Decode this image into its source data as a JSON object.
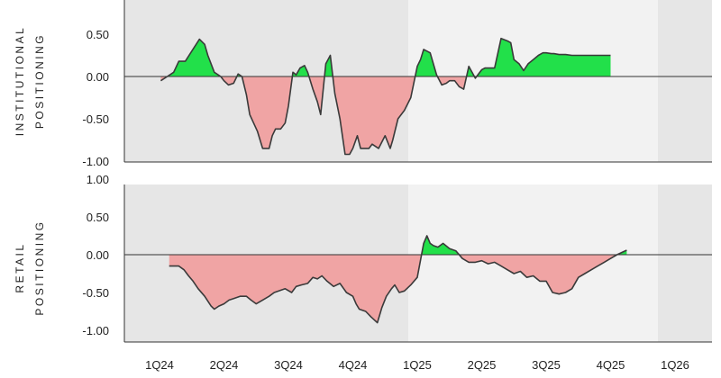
{
  "chart_data": [
    {
      "type": "area",
      "ylabel_lines": [
        "INSTITUTIONAL",
        "POSITIONING"
      ],
      "ylim": [
        -1.0,
        0.7
      ],
      "yticks": [
        0.5,
        0.0,
        -0.5,
        -1.0
      ],
      "ytick_labels": [
        "0.50",
        "0.00",
        "-0.50",
        "-1.00"
      ],
      "grid": false,
      "x": [
        0.02,
        0.12,
        0.22,
        0.3,
        0.4,
        0.5,
        0.62,
        0.7,
        0.75,
        0.85,
        0.95,
        1.0,
        1.07,
        1.15,
        1.22,
        1.28,
        1.35,
        1.4,
        1.46,
        1.52,
        1.6,
        1.7,
        1.75,
        1.8,
        1.88,
        1.95,
        2.0,
        2.07,
        2.12,
        2.18,
        2.25,
        2.3,
        2.38,
        2.45,
        2.5,
        2.58,
        2.65,
        2.72,
        2.8,
        2.88,
        2.95,
        3.0,
        3.07,
        3.12,
        3.2,
        3.25,
        3.3,
        3.4,
        3.5,
        3.58,
        3.62,
        3.7,
        3.8,
        3.9,
        4.0,
        4.05,
        4.1,
        4.2,
        4.3,
        4.38,
        4.45,
        4.5,
        4.58,
        4.65,
        4.72,
        4.8,
        4.9,
        5.0,
        5.05,
        5.1,
        5.2,
        5.3,
        5.4,
        5.45,
        5.5,
        5.58,
        5.65,
        5.72,
        5.8,
        5.88,
        5.95,
        6.0,
        6.08,
        6.12,
        6.2,
        6.3,
        6.4,
        6.5,
        6.6,
        6.7,
        6.8,
        6.9,
        7.0
      ],
      "y": [
        -0.05,
        0.0,
        0.05,
        0.18,
        0.18,
        0.3,
        0.44,
        0.38,
        0.25,
        0.05,
        0.0,
        -0.05,
        -0.1,
        -0.08,
        0.03,
        0.0,
        -0.22,
        -0.45,
        -0.55,
        -0.65,
        -0.85,
        -0.85,
        -0.7,
        -0.62,
        -0.62,
        -0.55,
        -0.35,
        0.05,
        0.02,
        0.1,
        0.13,
        0.05,
        -0.15,
        -0.3,
        -0.45,
        0.15,
        0.25,
        -0.2,
        -0.5,
        -0.92,
        -0.92,
        -0.85,
        -0.7,
        -0.85,
        -0.85,
        -0.85,
        -0.8,
        -0.85,
        -0.7,
        -0.85,
        -0.75,
        -0.5,
        -0.4,
        -0.25,
        0.12,
        0.2,
        0.32,
        0.28,
        0.02,
        -0.1,
        -0.08,
        -0.05,
        -0.05,
        -0.12,
        -0.15,
        0.12,
        -0.02,
        0.08,
        0.1,
        0.1,
        0.1,
        0.45,
        0.42,
        0.4,
        0.2,
        0.15,
        0.07,
        0.15,
        0.2,
        0.25,
        0.28,
        0.28,
        0.27,
        0.27,
        0.26,
        0.26,
        0.25,
        0.25,
        0.25,
        0.25,
        0.25,
        0.25,
        0.25
      ]
    },
    {
      "type": "area",
      "ylabel_lines": [
        "RETAIL",
        "POSITIONING"
      ],
      "ylim": [
        -1.0,
        1.05
      ],
      "yticks": [
        1.0,
        0.5,
        0.0,
        -0.5,
        -1.0
      ],
      "ytick_labels": [
        "1.00",
        "0.50",
        "0.00",
        "-0.50",
        "-1.00"
      ],
      "grid": false,
      "x": [
        0.15,
        0.3,
        0.38,
        0.45,
        0.52,
        0.6,
        0.7,
        0.8,
        0.85,
        0.92,
        1.0,
        1.08,
        1.15,
        1.25,
        1.35,
        1.42,
        1.5,
        1.6,
        1.7,
        1.78,
        1.85,
        1.95,
        2.05,
        2.12,
        2.2,
        2.3,
        2.38,
        2.45,
        2.52,
        2.6,
        2.7,
        2.8,
        2.9,
        3.0,
        3.05,
        3.1,
        3.2,
        3.28,
        3.38,
        3.45,
        3.52,
        3.6,
        3.65,
        3.72,
        3.8,
        3.9,
        4.0,
        4.1,
        4.15,
        4.2,
        4.25,
        4.32,
        4.4,
        4.5,
        4.6,
        4.7,
        4.8,
        4.9,
        5.0,
        5.1,
        5.2,
        5.3,
        5.4,
        5.5,
        5.6,
        5.7,
        5.8,
        5.9,
        6.0,
        6.1,
        6.2,
        6.3,
        6.4,
        6.5,
        6.6,
        6.7,
        6.8,
        6.9,
        7.0,
        7.1,
        7.25
      ],
      "y": [
        -0.15,
        -0.15,
        -0.2,
        -0.28,
        -0.35,
        -0.45,
        -0.55,
        -0.68,
        -0.72,
        -0.68,
        -0.65,
        -0.6,
        -0.58,
        -0.55,
        -0.55,
        -0.6,
        -0.65,
        -0.6,
        -0.55,
        -0.5,
        -0.48,
        -0.45,
        -0.5,
        -0.42,
        -0.4,
        -0.38,
        -0.3,
        -0.32,
        -0.28,
        -0.35,
        -0.42,
        -0.38,
        -0.5,
        -0.55,
        -0.65,
        -0.72,
        -0.75,
        -0.82,
        -0.9,
        -0.7,
        -0.55,
        -0.45,
        -0.4,
        -0.5,
        -0.48,
        -0.4,
        -0.3,
        0.15,
        0.25,
        0.15,
        0.12,
        0.1,
        0.15,
        0.08,
        0.05,
        -0.05,
        -0.1,
        -0.1,
        -0.08,
        -0.12,
        -0.1,
        -0.15,
        -0.2,
        -0.25,
        -0.22,
        -0.3,
        -0.28,
        -0.35,
        -0.35,
        -0.5,
        -0.52,
        -0.5,
        -0.45,
        -0.3,
        -0.25,
        -0.2,
        -0.15,
        -0.1,
        -0.05,
        0.0,
        0.06
      ]
    }
  ],
  "x_axis": {
    "categories": [
      "1Q24",
      "2Q24",
      "3Q24",
      "4Q24",
      "1Q25",
      "2Q25",
      "3Q25",
      "4Q25",
      "1Q26"
    ]
  },
  "colors": {
    "positive_fill": "#22e04a",
    "negative_fill": "#f0a4a4",
    "line": "#3a3a3a",
    "shade_dark": "#e6e6e6",
    "shade_light": "#f2f2f2"
  }
}
